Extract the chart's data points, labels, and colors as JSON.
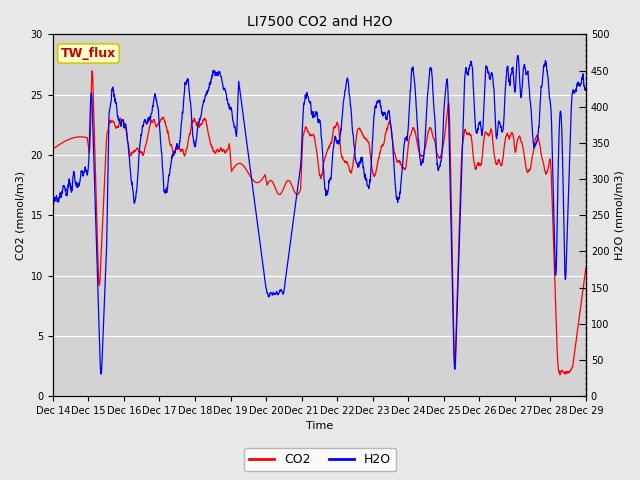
{
  "title": "LI7500 CO2 and H2O",
  "xlabel": "Time",
  "ylabel_left": "CO2 (mmol/m3)",
  "ylabel_right": "H2O (mmol/m3)",
  "ylim_left": [
    0,
    30
  ],
  "ylim_right": [
    0,
    500
  ],
  "yticks_left": [
    0,
    5,
    10,
    15,
    20,
    25,
    30
  ],
  "yticks_right": [
    0,
    50,
    100,
    150,
    200,
    250,
    300,
    350,
    400,
    450,
    500
  ],
  "xtick_labels": [
    "Dec 14",
    "Dec 15",
    "Dec 16",
    "Dec 17",
    "Dec 18",
    "Dec 19",
    "Dec 20",
    "Dec 21",
    "Dec 22",
    "Dec 23",
    "Dec 24",
    "Dec 25",
    "Dec 26",
    "Dec 27",
    "Dec 28",
    "Dec 29"
  ],
  "co2_color": "#FF0000",
  "h2o_color": "#0000FF",
  "fig_facecolor": "#E8E8E8",
  "plot_facecolor": "#D3D3D3",
  "legend_label": "TW_flux",
  "legend_bg": "#FFFFCC",
  "legend_border": "#CCCC00",
  "grid_color": "#FFFFFF",
  "title_fontsize": 10,
  "axis_label_fontsize": 8,
  "tick_fontsize": 7,
  "legend_fontsize": 9
}
